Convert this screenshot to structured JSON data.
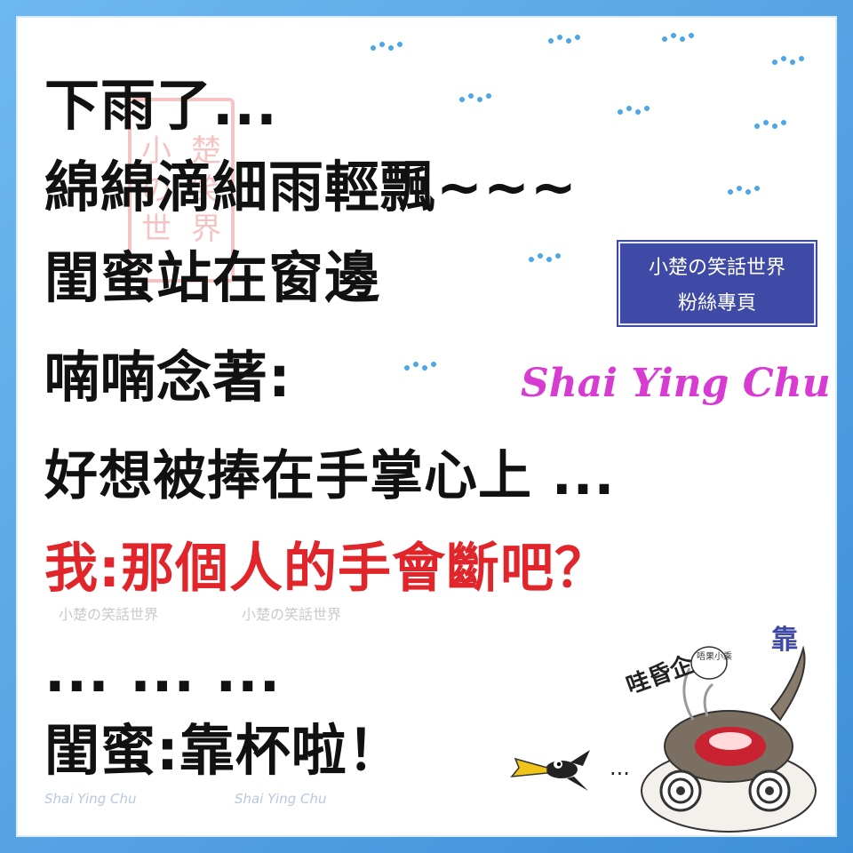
{
  "lines": [
    {
      "text": "下雨了..."
    },
    {
      "text": "綿綿滴細雨輕飄~~~"
    },
    {
      "text": "閨蜜站在窗邊"
    },
    {
      "text": "喃喃念著:"
    },
    {
      "text": "好想被捧在手掌心上 ..."
    },
    {
      "text": "我:那個人的手會斷吧？"
    },
    {
      "text": "...   ...   ..."
    },
    {
      "text": "閨蜜:靠杯啦！"
    }
  ],
  "stamp": {
    "chars": [
      "小",
      "楚",
      "の",
      "笑",
      "世",
      "界"
    ]
  },
  "badge": {
    "line1": "小楚の笑話世界",
    "line2": "粉絲專頁"
  },
  "signature": "Shai Ying Chu",
  "watermarks": {
    "wm1": "小楚の笑話世界",
    "wm2": "小楚の笑話世界",
    "wm3": "Shai Ying Chu",
    "wm4": "Shai Ying Chu"
  },
  "mascot": {
    "exclaim": "哇昏企",
    "mark": "靠",
    "bubble": "唔果小乘"
  },
  "bird_trail": "...",
  "colors": {
    "text": "#111111",
    "red": "#e0262b",
    "badge": "#3e4aa6",
    "signature": "#d83bd2",
    "drops": "#4aa6e6"
  },
  "icons": [
    "rain-drops-icon",
    "bird-icon",
    "cat-mascot-icon"
  ]
}
